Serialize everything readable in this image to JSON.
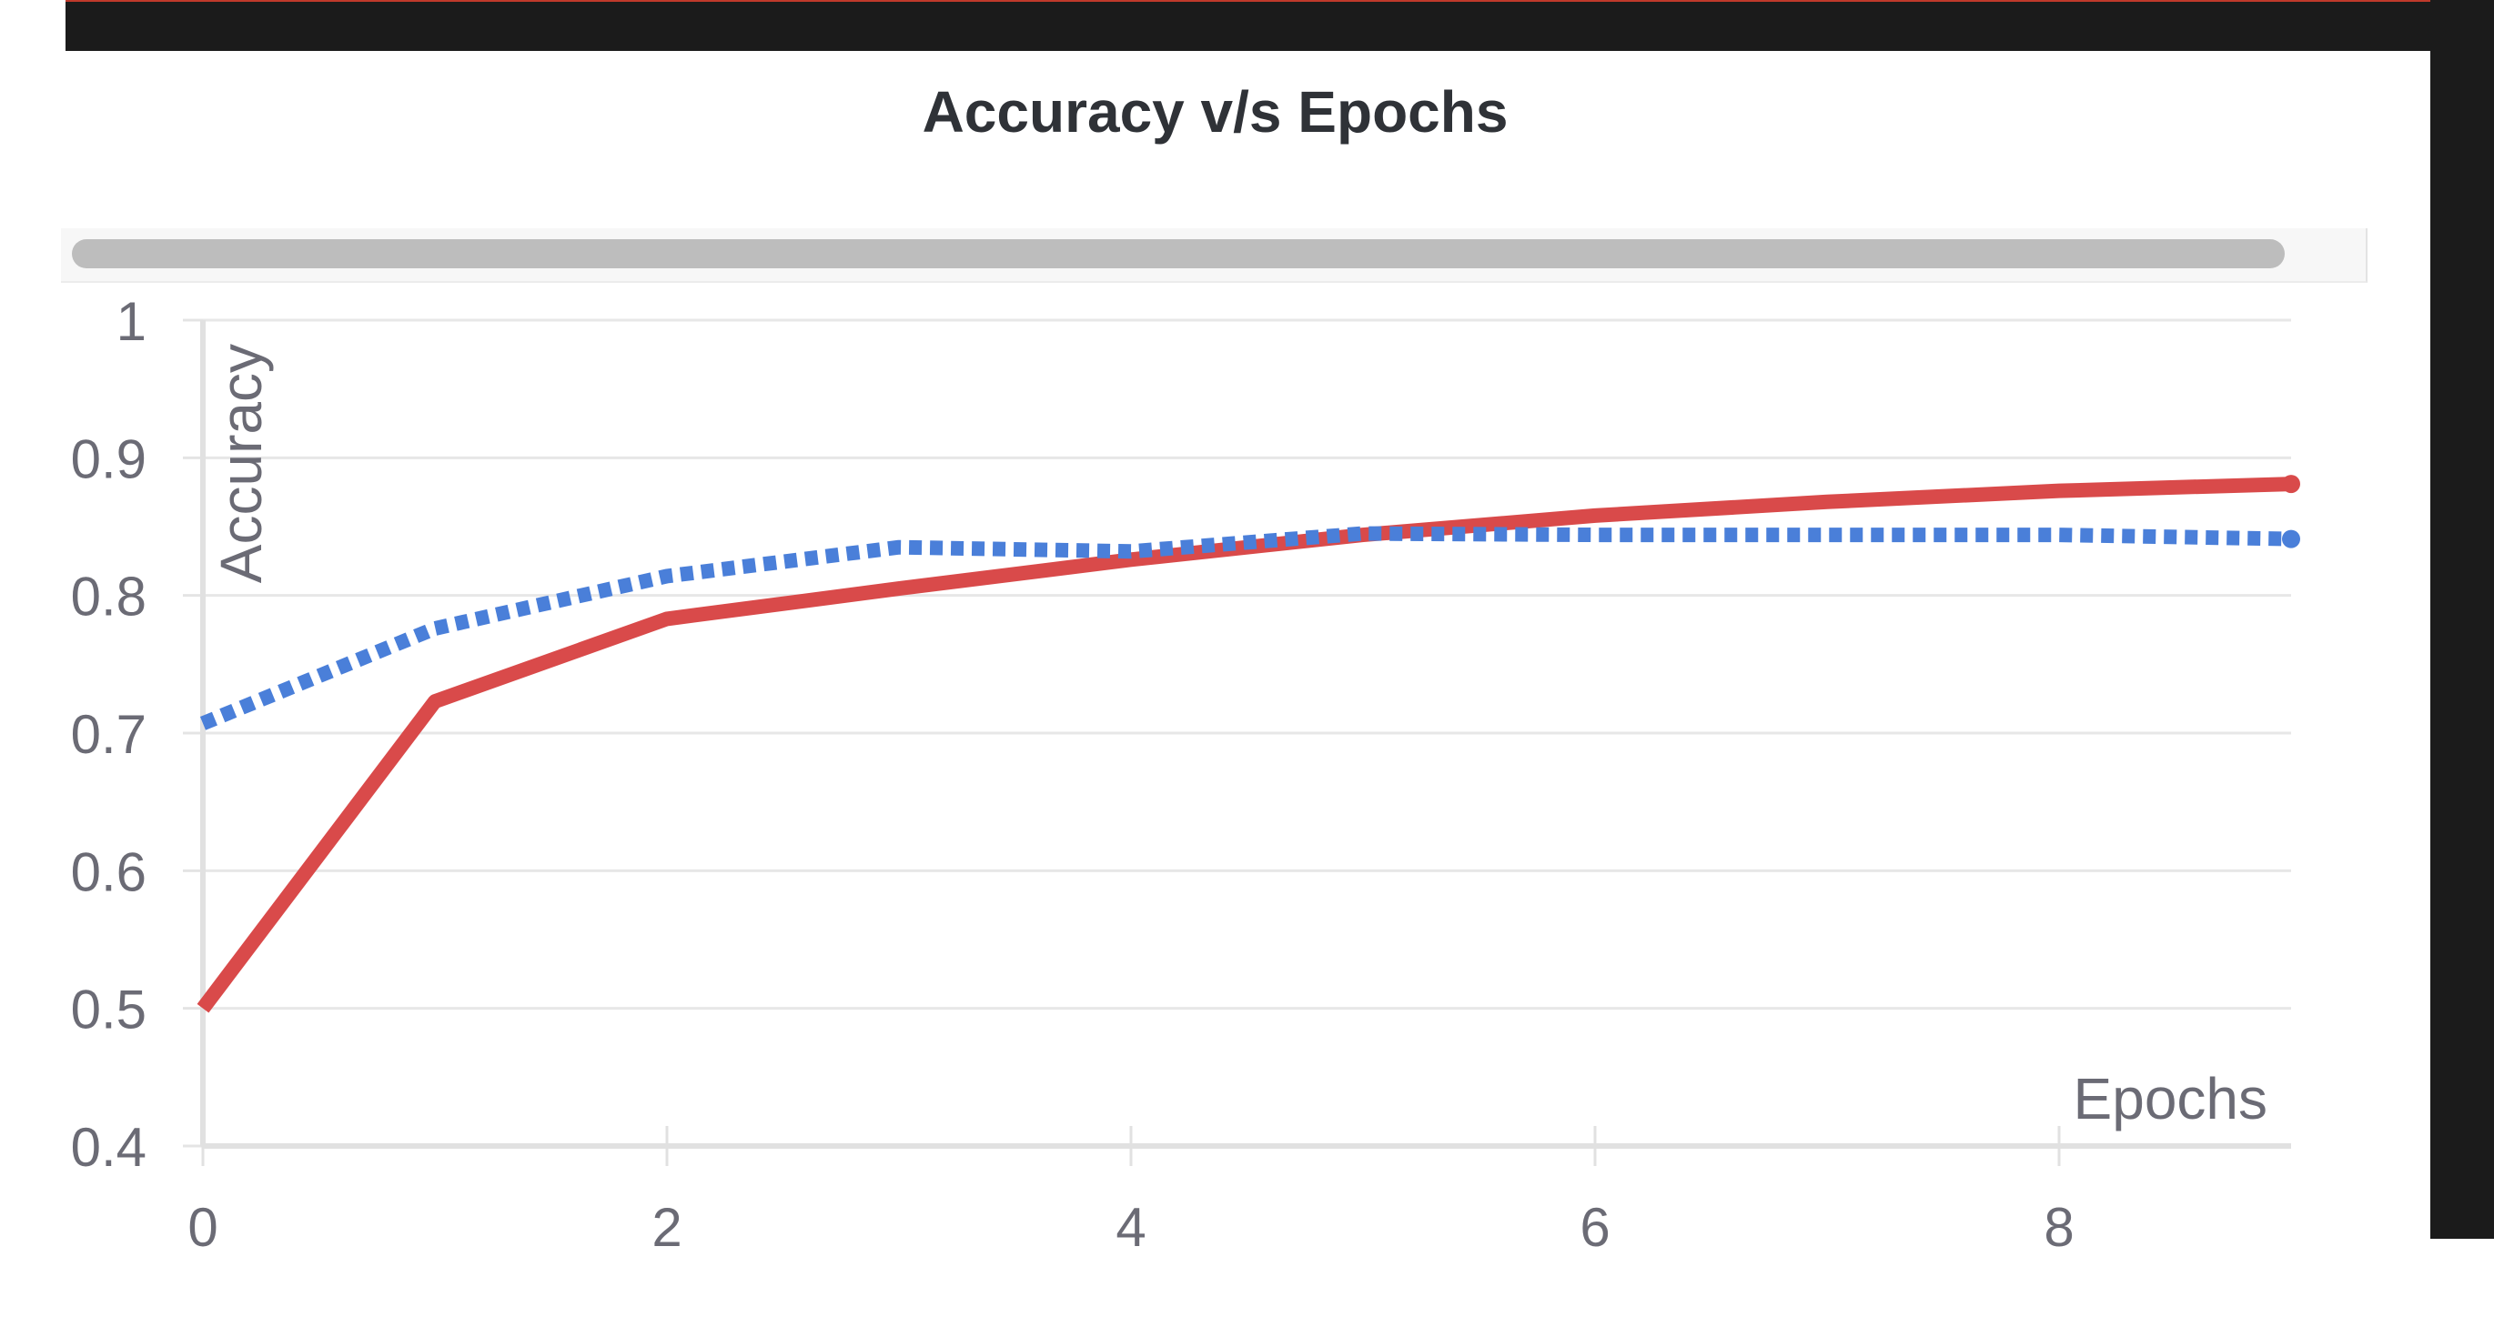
{
  "chart_data": {
    "type": "line",
    "title": "Accuracy v/s Epochs",
    "xlabel": "Epochs",
    "ylabel": "Accuracy",
    "xlim": [
      0,
      9
    ],
    "ylim": [
      0.4,
      1
    ],
    "x": [
      0,
      1,
      2,
      3,
      4,
      5,
      6,
      7,
      8,
      9
    ],
    "x_ticks": [
      "0",
      "2",
      "4",
      "6",
      "8"
    ],
    "x_tick_values": [
      0,
      2,
      4,
      6,
      8
    ],
    "y_ticks": [
      "0.4",
      "0.5",
      "0.6",
      "0.7",
      "0.8",
      "0.9",
      "1"
    ],
    "y_tick_values": [
      0.4,
      0.5,
      0.6,
      0.7,
      0.8,
      0.9,
      1
    ],
    "grid": true,
    "series": [
      {
        "style": "solid",
        "color": "#d94a4a",
        "values": [
          0.5,
          0.723,
          0.783,
          0.805,
          0.826,
          0.844,
          0.858,
          0.868,
          0.876,
          0.881
        ]
      },
      {
        "style": "dotted",
        "color": "#4a7fd9",
        "values": [
          0.707,
          0.776,
          0.814,
          0.835,
          0.832,
          0.845,
          0.844,
          0.844,
          0.844,
          0.841
        ]
      }
    ]
  }
}
